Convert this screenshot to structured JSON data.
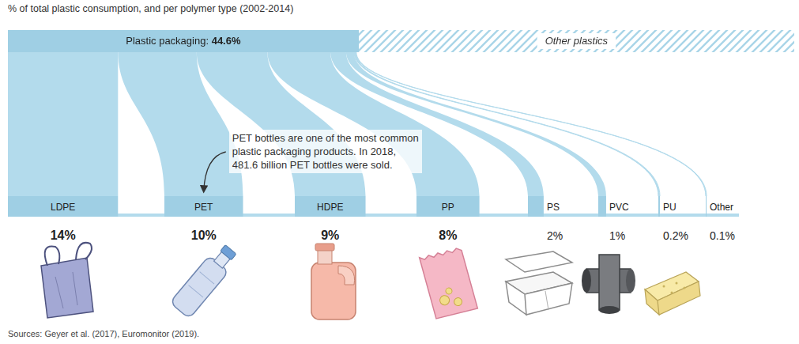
{
  "chart_data": {
    "type": "bar",
    "title": "% of total plastic consumption, and per polymer type (2002-2014)",
    "orientation": "horizontal",
    "stacked": true,
    "xlim": [
      0,
      100
    ],
    "tick_labels": false,
    "grid": false,
    "series": [
      {
        "name": "Plastic packaging",
        "values": [
          44.6
        ],
        "value_labels": [
          "Plastic packaging: 44.6%"
        ],
        "color": "#9fcfe4"
      },
      {
        "name": "Other plastics",
        "values": [
          55.4
        ],
        "color": "#a9d5e8"
      }
    ],
    "flows": {
      "source": "Plastic packaging",
      "categories": [
        "LDPE",
        "PET",
        "HDPE",
        "PP",
        "PS",
        "PVC",
        "PU",
        "Other"
      ],
      "values": [
        14,
        10,
        9,
        8,
        2,
        1,
        0.2,
        0.1
      ],
      "value_labels": [
        "14%",
        "10%",
        "9%",
        "8%",
        "2%",
        "1%",
        "0.2%",
        "0.1%"
      ],
      "color": "#b3dbec"
    },
    "annotation": {
      "target": "PET",
      "lines": [
        "PET bottles are one of the most common",
        "plastic packaging products. In 2018,",
        "481.6 billion PET bottles were sold."
      ]
    },
    "source": "Sources: Geyer et al. (2017), Euromonitor (2019)."
  }
}
